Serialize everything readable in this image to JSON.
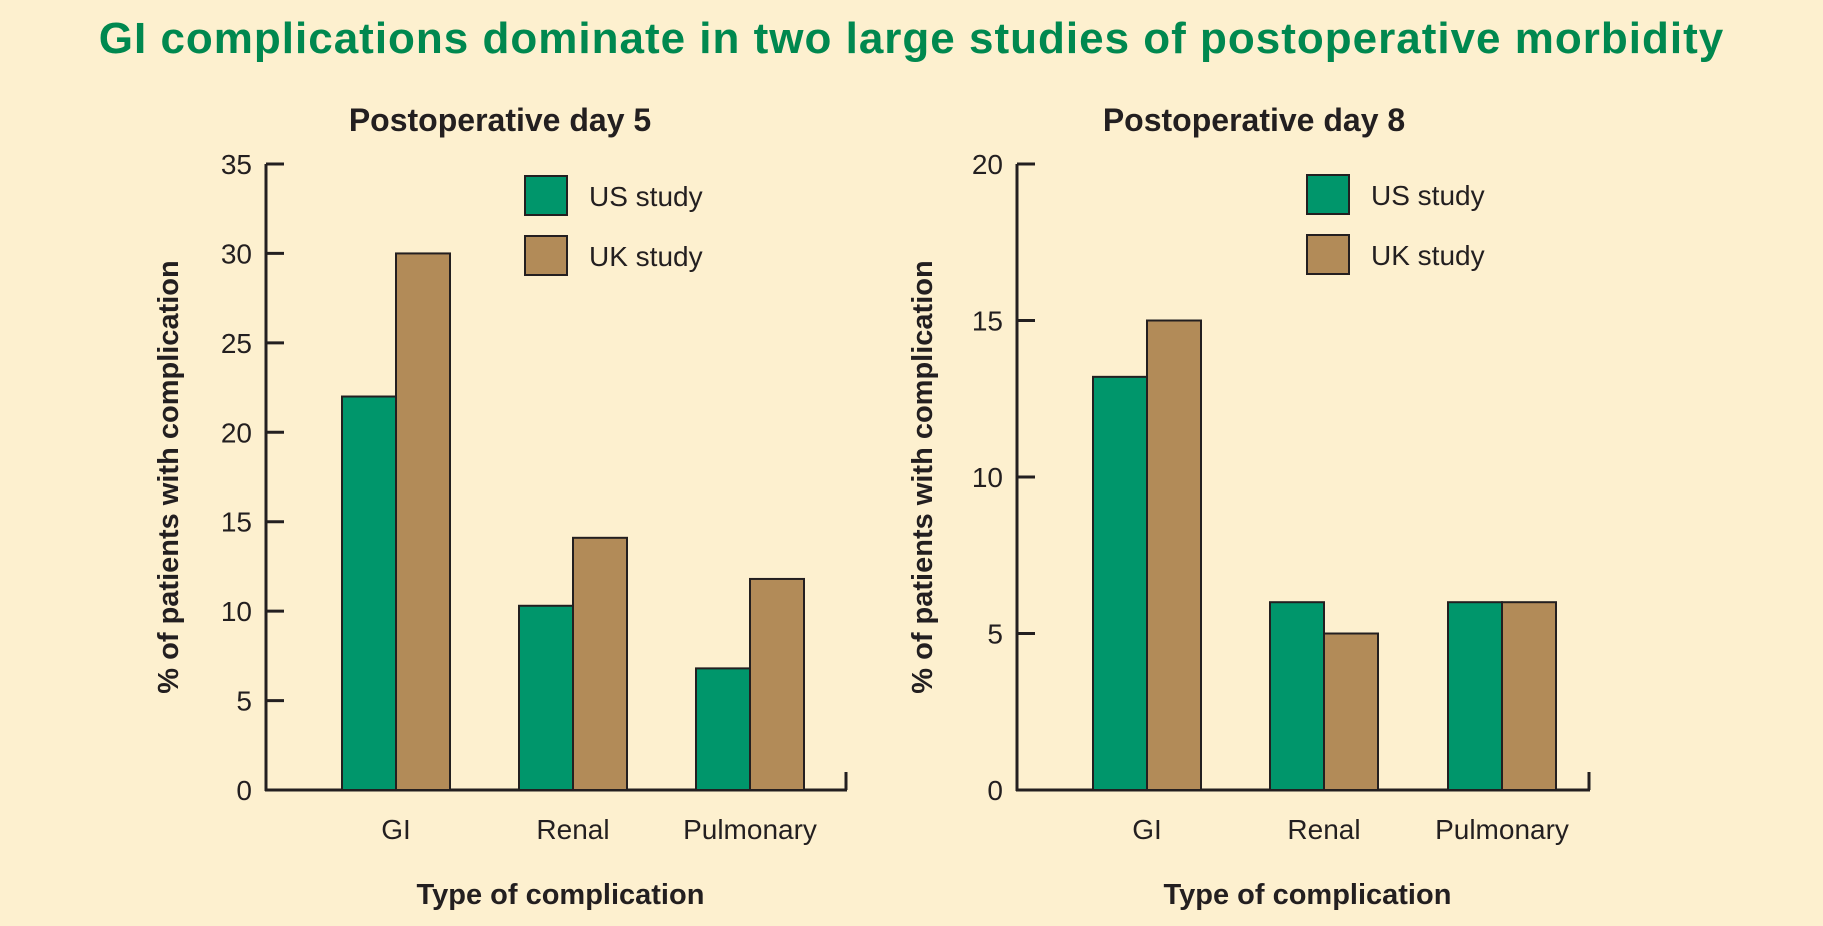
{
  "figure_title": "GI complications dominate in two large studies of postoperative morbidity",
  "colors": {
    "background": "#fdf0cf",
    "title": "#00884f",
    "us_study": "#00966b",
    "uk_study": "#b28b58",
    "axis": "#231f20"
  },
  "chart_data": [
    {
      "type": "bar",
      "title": "Postoperative day 5",
      "xlabel": "Type of complication",
      "ylabel": "% of patients with complication",
      "categories": [
        "GI",
        "Renal",
        "Pulmonary"
      ],
      "series": [
        {
          "name": "US study",
          "values": [
            22,
            10.3,
            6.8
          ],
          "color": "#00966b"
        },
        {
          "name": "UK study",
          "values": [
            30,
            14.1,
            11.8
          ],
          "color": "#b28b58"
        }
      ],
      "ylim": [
        0,
        35
      ],
      "yticks": [
        0,
        5,
        10,
        15,
        20,
        25,
        30,
        35
      ],
      "legend_position": "top-right",
      "grid": false
    },
    {
      "type": "bar",
      "title": "Postoperative day 8",
      "xlabel": "Type of complication",
      "ylabel": "% of patients with complication",
      "categories": [
        "GI",
        "Renal",
        "Pulmonary"
      ],
      "series": [
        {
          "name": "US study",
          "values": [
            13.2,
            6,
            6
          ],
          "color": "#00966b"
        },
        {
          "name": "UK study",
          "values": [
            15,
            5,
            6
          ],
          "color": "#b28b58"
        }
      ],
      "ylim": [
        0,
        20
      ],
      "yticks": [
        0,
        5,
        10,
        15,
        20
      ],
      "legend_position": "top-right",
      "grid": false
    }
  ]
}
